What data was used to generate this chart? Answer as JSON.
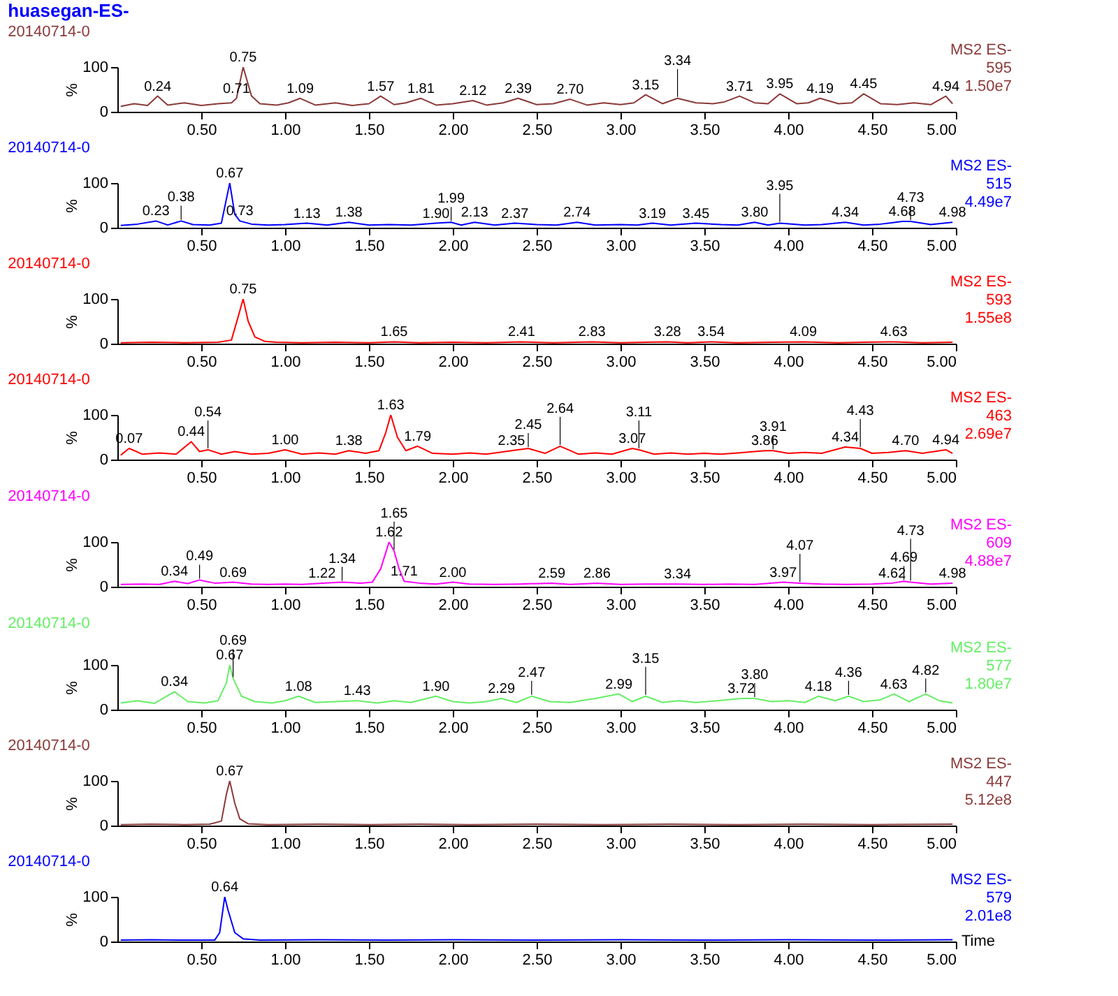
{
  "chart_data": [
    {
      "type": "line",
      "title": "huasegan-ES-",
      "subtitle": "20140714-0",
      "ylabel": "%",
      "xlim": [
        0,
        5
      ],
      "ylim": [
        0,
        100
      ],
      "yticks": [
        0,
        100
      ],
      "xticks": [
        {
          "value": 0.5,
          "label": "0.50"
        },
        {
          "value": 1,
          "label": "1.00"
        },
        {
          "value": 1.5,
          "label": "1.50"
        },
        {
          "value": 2,
          "label": "2.00"
        },
        {
          "value": 2.5,
          "label": "2.50"
        },
        {
          "value": 3,
          "label": "3.00"
        },
        {
          "value": 3.5,
          "label": "3.50"
        },
        {
          "value": 4,
          "label": "4.00"
        },
        {
          "value": 4.5,
          "label": "4.50"
        },
        {
          "value": 5,
          "label": "5.00"
        }
      ],
      "x": [
        0.02,
        0.1,
        0.18,
        0.24,
        0.3,
        0.4,
        0.5,
        0.6,
        0.68,
        0.71,
        0.75,
        0.8,
        0.85,
        0.95,
        1.02,
        1.09,
        1.18,
        1.3,
        1.4,
        1.5,
        1.57,
        1.65,
        1.72,
        1.81,
        1.9,
        2.0,
        2.12,
        2.2,
        2.3,
        2.39,
        2.5,
        2.6,
        2.7,
        2.8,
        2.9,
        3.0,
        3.08,
        3.15,
        3.25,
        3.34,
        3.45,
        3.55,
        3.62,
        3.71,
        3.8,
        3.88,
        3.95,
        4.05,
        4.12,
        4.19,
        4.3,
        4.38,
        4.45,
        4.55,
        4.65,
        4.75,
        4.85,
        4.94,
        4.98
      ],
      "series": [
        {
          "color": "#8b3a3a",
          "values": [
            12,
            18,
            14,
            35,
            15,
            20,
            14,
            18,
            20,
            30,
            100,
            35,
            18,
            15,
            20,
            30,
            15,
            20,
            14,
            18,
            35,
            16,
            20,
            30,
            15,
            18,
            25,
            15,
            20,
            30,
            16,
            18,
            28,
            15,
            20,
            16,
            20,
            38,
            18,
            30,
            20,
            18,
            22,
            35,
            20,
            18,
            40,
            18,
            20,
            30,
            18,
            20,
            40,
            18,
            16,
            20,
            16,
            35,
            18
          ]
        }
      ],
      "annotations": [
        "MS2 ES-",
        "595",
        "1.50e7",
        {
          "text": "0.24",
          "x": 0.24,
          "y": 35
        },
        {
          "text": "0.71",
          "x": 0.71,
          "y": 30
        },
        {
          "text": "0.75",
          "x": 0.75,
          "y": 100
        },
        {
          "text": "1.09",
          "x": 1.09,
          "y": 30
        },
        {
          "text": "1.57",
          "x": 1.57,
          "y": 35
        },
        {
          "text": "1.81",
          "x": 1.81,
          "y": 30
        },
        {
          "text": "2.12",
          "x": 2.12,
          "y": 25
        },
        {
          "text": "2.39",
          "x": 2.39,
          "y": 30
        },
        {
          "text": "2.70",
          "x": 2.7,
          "y": 28
        },
        {
          "text": "3.15",
          "x": 3.15,
          "y": 38
        },
        {
          "text": "3.34",
          "x": 3.34,
          "y": 30
        },
        {
          "text": "3.71",
          "x": 3.71,
          "y": 35
        },
        {
          "text": "3.95",
          "x": 3.95,
          "y": 40
        },
        {
          "text": "4.19",
          "x": 4.19,
          "y": 30
        },
        {
          "text": "4.45",
          "x": 4.45,
          "y": 40
        },
        {
          "text": "4.94",
          "x": 4.94,
          "y": 35
        }
      ]
    },
    {
      "type": "line",
      "title": "20140714-0",
      "ylabel": "%",
      "xlim": [
        0,
        5
      ],
      "ylim": [
        0,
        100
      ],
      "yticks": [
        0,
        100
      ],
      "xticks": [
        {
          "value": 0.5,
          "label": "0.50"
        },
        {
          "value": 1,
          "label": "1.00"
        },
        {
          "value": 1.5,
          "label": "1.50"
        },
        {
          "value": 2,
          "label": "2.00"
        },
        {
          "value": 2.5,
          "label": "2.50"
        },
        {
          "value": 3,
          "label": "3.00"
        },
        {
          "value": 3.5,
          "label": "3.50"
        },
        {
          "value": 4,
          "label": "4.00"
        },
        {
          "value": 4.5,
          "label": "4.50"
        },
        {
          "value": 5,
          "label": "5.00"
        }
      ],
      "x": [
        0.02,
        0.12,
        0.23,
        0.3,
        0.38,
        0.45,
        0.55,
        0.62,
        0.67,
        0.7,
        0.73,
        0.8,
        0.9,
        1.0,
        1.13,
        1.25,
        1.38,
        1.5,
        1.62,
        1.75,
        1.9,
        1.99,
        2.05,
        2.13,
        2.25,
        2.37,
        2.5,
        2.62,
        2.74,
        2.85,
        3.0,
        3.1,
        3.19,
        3.3,
        3.45,
        3.6,
        3.7,
        3.8,
        3.88,
        3.95,
        4.1,
        4.2,
        4.34,
        4.45,
        4.55,
        4.68,
        4.73,
        4.85,
        4.98
      ],
      "series": [
        {
          "color": "#0000ff",
          "values": [
            5,
            8,
            15,
            6,
            15,
            7,
            6,
            10,
            100,
            30,
            15,
            8,
            6,
            7,
            10,
            6,
            12,
            6,
            7,
            6,
            10,
            12,
            6,
            12,
            6,
            10,
            7,
            6,
            12,
            6,
            7,
            6,
            10,
            6,
            10,
            7,
            6,
            12,
            6,
            10,
            6,
            7,
            12,
            6,
            8,
            14,
            14,
            7,
            12
          ]
        }
      ],
      "annotations": [
        "MS2 ES-",
        "515",
        "4.49e7",
        {
          "text": "0.23",
          "x": 0.23,
          "y": 15
        },
        {
          "text": "0.38",
          "x": 0.38,
          "y": 15
        },
        {
          "text": "0.67",
          "x": 0.67,
          "y": 100
        },
        {
          "text": "0.73",
          "x": 0.73,
          "y": 15
        },
        {
          "text": "1.13",
          "x": 1.13,
          "y": 10
        },
        {
          "text": "1.38",
          "x": 1.38,
          "y": 12
        },
        {
          "text": "1.90",
          "x": 1.9,
          "y": 10
        },
        {
          "text": "1.99",
          "x": 1.99,
          "y": 12
        },
        {
          "text": "2.13",
          "x": 2.13,
          "y": 12
        },
        {
          "text": "2.37",
          "x": 2.37,
          "y": 10
        },
        {
          "text": "2.74",
          "x": 2.74,
          "y": 12
        },
        {
          "text": "3.19",
          "x": 3.19,
          "y": 10
        },
        {
          "text": "3.45",
          "x": 3.45,
          "y": 10
        },
        {
          "text": "3.80",
          "x": 3.8,
          "y": 12
        },
        {
          "text": "3.95",
          "x": 3.95,
          "y": 10
        },
        {
          "text": "4.34",
          "x": 4.34,
          "y": 12
        },
        {
          "text": "4.68",
          "x": 4.68,
          "y": 14
        },
        {
          "text": "4.73",
          "x": 4.73,
          "y": 14
        },
        {
          "text": "4.98",
          "x": 4.98,
          "y": 12
        }
      ]
    },
    {
      "type": "line",
      "title": "20140714-0",
      "ylabel": "%",
      "xlim": [
        0,
        5
      ],
      "ylim": [
        0,
        100
      ],
      "yticks": [
        0,
        100
      ],
      "xticks": [
        {
          "value": 0.5,
          "label": "0.50"
        },
        {
          "value": 1,
          "label": "1.00"
        },
        {
          "value": 1.5,
          "label": "1.50"
        },
        {
          "value": 2,
          "label": "2.00"
        },
        {
          "value": 2.5,
          "label": "2.50"
        },
        {
          "value": 3,
          "label": "3.00"
        },
        {
          "value": 3.5,
          "label": "3.50"
        },
        {
          "value": 4,
          "label": "4.00"
        },
        {
          "value": 4.5,
          "label": "4.50"
        },
        {
          "value": 5,
          "label": "5.00"
        }
      ],
      "x": [
        0.02,
        0.2,
        0.4,
        0.6,
        0.68,
        0.72,
        0.75,
        0.78,
        0.82,
        0.88,
        0.95,
        1.1,
        1.3,
        1.5,
        1.65,
        1.8,
        2.0,
        2.2,
        2.41,
        2.6,
        2.83,
        3.0,
        3.15,
        3.28,
        3.4,
        3.54,
        3.7,
        3.9,
        4.09,
        4.3,
        4.45,
        4.63,
        4.8,
        4.98
      ],
      "series": [
        {
          "color": "#ff0000",
          "values": [
            2,
            3,
            2,
            3,
            8,
            60,
            100,
            50,
            15,
            5,
            3,
            2,
            3,
            2,
            4,
            2,
            3,
            2,
            4,
            2,
            4,
            2,
            3,
            4,
            2,
            4,
            2,
            3,
            4,
            2,
            3,
            4,
            2,
            3
          ]
        }
      ],
      "annotations": [
        "MS2 ES-",
        "593",
        "1.55e8",
        {
          "text": "0.75",
          "x": 0.75,
          "y": 100
        },
        {
          "text": "1.65",
          "x": 1.65,
          "y": 4
        },
        {
          "text": "2.41",
          "x": 2.41,
          "y": 4
        },
        {
          "text": "2.83",
          "x": 2.83,
          "y": 4
        },
        {
          "text": "3.28",
          "x": 3.28,
          "y": 4
        },
        {
          "text": "3.54",
          "x": 3.54,
          "y": 4
        },
        {
          "text": "4.09",
          "x": 4.09,
          "y": 4
        },
        {
          "text": "4.63",
          "x": 4.63,
          "y": 4
        }
      ]
    },
    {
      "type": "line",
      "title": "20140714-0",
      "ylabel": "%",
      "xlim": [
        0,
        5
      ],
      "ylim": [
        0,
        100
      ],
      "yticks": [
        0,
        100
      ],
      "xticks": [
        {
          "value": 0.5,
          "label": "0.50"
        },
        {
          "value": 1,
          "label": "1.00"
        },
        {
          "value": 1.5,
          "label": "1.50"
        },
        {
          "value": 2,
          "label": "2.00"
        },
        {
          "value": 2.5,
          "label": "2.50"
        },
        {
          "value": 3,
          "label": "3.00"
        },
        {
          "value": 3.5,
          "label": "3.50"
        },
        {
          "value": 4,
          "label": "4.00"
        },
        {
          "value": 4.5,
          "label": "4.50"
        },
        {
          "value": 5,
          "label": "5.00"
        }
      ],
      "x": [
        0.02,
        0.07,
        0.15,
        0.25,
        0.35,
        0.44,
        0.49,
        0.54,
        0.62,
        0.7,
        0.8,
        0.9,
        1.0,
        1.1,
        1.2,
        1.3,
        1.38,
        1.48,
        1.56,
        1.6,
        1.63,
        1.67,
        1.72,
        1.79,
        1.88,
        2.0,
        2.1,
        2.2,
        2.35,
        2.45,
        2.55,
        2.64,
        2.75,
        2.85,
        2.95,
        3.07,
        3.11,
        3.2,
        3.3,
        3.4,
        3.5,
        3.6,
        3.7,
        3.86,
        3.91,
        4.0,
        4.1,
        4.2,
        4.34,
        4.43,
        4.5,
        4.6,
        4.7,
        4.8,
        4.94,
        4.98
      ],
      "series": [
        {
          "color": "#ff0000",
          "values": [
            10,
            25,
            12,
            15,
            12,
            40,
            18,
            22,
            12,
            18,
            12,
            14,
            22,
            12,
            15,
            12,
            20,
            14,
            20,
            60,
            100,
            50,
            20,
            30,
            14,
            12,
            15,
            12,
            20,
            25,
            14,
            30,
            12,
            15,
            12,
            25,
            22,
            12,
            15,
            12,
            14,
            12,
            15,
            20,
            20,
            14,
            16,
            14,
            28,
            25,
            14,
            16,
            20,
            14,
            22,
            14
          ]
        }
      ],
      "annotations": [
        "MS2 ES-",
        "463",
        "2.69e7",
        {
          "text": "0.07",
          "x": 0.07,
          "y": 25
        },
        {
          "text": "0.44",
          "x": 0.44,
          "y": 40
        },
        {
          "text": "0.54",
          "x": 0.54,
          "y": 22
        },
        {
          "text": "1.00",
          "x": 1.0,
          "y": 22
        },
        {
          "text": "1.38",
          "x": 1.38,
          "y": 20
        },
        {
          "text": "1.63",
          "x": 1.63,
          "y": 100
        },
        {
          "text": "1.79",
          "x": 1.79,
          "y": 30
        },
        {
          "text": "2.35",
          "x": 2.35,
          "y": 20
        },
        {
          "text": "2.45",
          "x": 2.45,
          "y": 25
        },
        {
          "text": "2.64",
          "x": 2.64,
          "y": 30
        },
        {
          "text": "3.07",
          "x": 3.07,
          "y": 25
        },
        {
          "text": "3.11",
          "x": 3.11,
          "y": 22
        },
        {
          "text": "3.86",
          "x": 3.86,
          "y": 20
        },
        {
          "text": "3.91",
          "x": 3.91,
          "y": 20
        },
        {
          "text": "4.34",
          "x": 4.34,
          "y": 28
        },
        {
          "text": "4.43",
          "x": 4.43,
          "y": 25
        },
        {
          "text": "4.70",
          "x": 4.7,
          "y": 20
        },
        {
          "text": "4.94",
          "x": 4.94,
          "y": 22
        }
      ]
    },
    {
      "type": "line",
      "title": "20140714-0",
      "ylabel": "%",
      "xlim": [
        0,
        5
      ],
      "ylim": [
        0,
        100
      ],
      "yticks": [
        0,
        100
      ],
      "xticks": [
        {
          "value": 0.5,
          "label": "0.50"
        },
        {
          "value": 1,
          "label": "1.00"
        },
        {
          "value": 1.5,
          "label": "1.50"
        },
        {
          "value": 2,
          "label": "2.00"
        },
        {
          "value": 2.5,
          "label": "2.50"
        },
        {
          "value": 3,
          "label": "3.00"
        },
        {
          "value": 3.5,
          "label": "3.50"
        },
        {
          "value": 4,
          "label": "4.00"
        },
        {
          "value": 4.5,
          "label": "4.50"
        },
        {
          "value": 5,
          "label": "5.00"
        }
      ],
      "x": [
        0.02,
        0.15,
        0.25,
        0.34,
        0.42,
        0.49,
        0.58,
        0.69,
        0.8,
        0.9,
        1.0,
        1.1,
        1.22,
        1.34,
        1.45,
        1.52,
        1.57,
        1.62,
        1.65,
        1.68,
        1.71,
        1.8,
        1.9,
        2.0,
        2.1,
        2.25,
        2.4,
        2.59,
        2.7,
        2.86,
        3.0,
        3.15,
        3.34,
        3.5,
        3.65,
        3.8,
        3.97,
        4.07,
        4.2,
        4.35,
        4.5,
        4.62,
        4.69,
        4.73,
        4.85,
        4.98
      ],
      "series": [
        {
          "color": "#ff00ff",
          "values": [
            5,
            6,
            5,
            12,
            7,
            15,
            8,
            10,
            6,
            5,
            6,
            5,
            8,
            10,
            8,
            10,
            40,
            100,
            80,
            40,
            12,
            8,
            6,
            10,
            6,
            5,
            6,
            8,
            5,
            8,
            5,
            6,
            6,
            5,
            6,
            5,
            10,
            8,
            6,
            5,
            6,
            8,
            12,
            10,
            6,
            8
          ]
        }
      ],
      "annotations": [
        "MS2 ES-",
        "609",
        "4.88e7",
        {
          "text": "0.34",
          "x": 0.34,
          "y": 12
        },
        {
          "text": "0.49",
          "x": 0.49,
          "y": 15
        },
        {
          "text": "0.69",
          "x": 0.69,
          "y": 10
        },
        {
          "text": "1.22",
          "x": 1.22,
          "y": 8
        },
        {
          "text": "1.34",
          "x": 1.34,
          "y": 10
        },
        {
          "text": "1.62",
          "x": 1.62,
          "y": 100
        },
        {
          "text": "1.65",
          "x": 1.65,
          "y": 80
        },
        {
          "text": "1.71",
          "x": 1.71,
          "y": 12
        },
        {
          "text": "2.00",
          "x": 2.0,
          "y": 10
        },
        {
          "text": "2.59",
          "x": 2.59,
          "y": 8
        },
        {
          "text": "2.86",
          "x": 2.86,
          "y": 8
        },
        {
          "text": "3.34",
          "x": 3.34,
          "y": 6
        },
        {
          "text": "3.97",
          "x": 3.97,
          "y": 10
        },
        {
          "text": "4.07",
          "x": 4.07,
          "y": 8
        },
        {
          "text": "4.62",
          "x": 4.62,
          "y": 8
        },
        {
          "text": "4.69",
          "x": 4.69,
          "y": 12
        },
        {
          "text": "4.73",
          "x": 4.73,
          "y": 10
        },
        {
          "text": "4.98",
          "x": 4.98,
          "y": 8
        }
      ]
    },
    {
      "type": "line",
      "title": "20140714-0",
      "ylabel": "%",
      "xlim": [
        0,
        5
      ],
      "ylim": [
        0,
        100
      ],
      "yticks": [
        0,
        100
      ],
      "xticks": [
        {
          "value": 0.5,
          "label": "0.50"
        },
        {
          "value": 1,
          "label": "1.00"
        },
        {
          "value": 1.5,
          "label": "1.50"
        },
        {
          "value": 2,
          "label": "2.00"
        },
        {
          "value": 2.5,
          "label": "2.50"
        },
        {
          "value": 3,
          "label": "3.00"
        },
        {
          "value": 3.5,
          "label": "3.50"
        },
        {
          "value": 4,
          "label": "4.00"
        },
        {
          "value": 4.5,
          "label": "4.50"
        },
        {
          "value": 5,
          "label": "5.00"
        }
      ],
      "x": [
        0.02,
        0.12,
        0.22,
        0.34,
        0.42,
        0.52,
        0.6,
        0.65,
        0.67,
        0.69,
        0.74,
        0.82,
        0.92,
        1.0,
        1.08,
        1.18,
        1.3,
        1.43,
        1.55,
        1.65,
        1.75,
        1.9,
        2.0,
        2.1,
        2.2,
        2.29,
        2.38,
        2.47,
        2.58,
        2.7,
        2.85,
        2.99,
        3.07,
        3.15,
        3.25,
        3.35,
        3.45,
        3.58,
        3.72,
        3.8,
        3.9,
        4.0,
        4.1,
        4.18,
        4.28,
        4.36,
        4.45,
        4.55,
        4.63,
        4.72,
        4.82,
        4.9,
        4.98
      ],
      "series": [
        {
          "color": "#66ee66",
          "values": [
            15,
            20,
            14,
            40,
            18,
            15,
            20,
            60,
            100,
            70,
            30,
            18,
            15,
            20,
            30,
            16,
            18,
            20,
            15,
            20,
            16,
            30,
            18,
            15,
            18,
            25,
            16,
            30,
            18,
            16,
            25,
            35,
            18,
            30,
            16,
            20,
            16,
            20,
            25,
            25,
            18,
            20,
            16,
            30,
            20,
            30,
            18,
            22,
            35,
            18,
            35,
            20,
            15
          ]
        }
      ],
      "annotations": [
        "MS2 ES-",
        "577",
        "1.80e7",
        {
          "text": "0.34",
          "x": 0.34,
          "y": 40
        },
        {
          "text": "0.67",
          "x": 0.67,
          "y": 100
        },
        {
          "text": "0.69",
          "x": 0.69,
          "y": 70
        },
        {
          "text": "1.08",
          "x": 1.08,
          "y": 30
        },
        {
          "text": "1.43",
          "x": 1.43,
          "y": 20
        },
        {
          "text": "1.90",
          "x": 1.9,
          "y": 30
        },
        {
          "text": "2.29",
          "x": 2.29,
          "y": 25
        },
        {
          "text": "2.47",
          "x": 2.47,
          "y": 30
        },
        {
          "text": "2.99",
          "x": 2.99,
          "y": 35
        },
        {
          "text": "3.15",
          "x": 3.15,
          "y": 30
        },
        {
          "text": "3.72",
          "x": 3.72,
          "y": 25
        },
        {
          "text": "3.80",
          "x": 3.8,
          "y": 25
        },
        {
          "text": "4.18",
          "x": 4.18,
          "y": 30
        },
        {
          "text": "4.36",
          "x": 4.36,
          "y": 30
        },
        {
          "text": "4.63",
          "x": 4.63,
          "y": 35
        },
        {
          "text": "4.82",
          "x": 4.82,
          "y": 35
        }
      ]
    },
    {
      "type": "line",
      "title": "20140714-0",
      "ylabel": "%",
      "xlim": [
        0,
        5
      ],
      "ylim": [
        0,
        100
      ],
      "yticks": [
        0,
        100
      ],
      "xticks": [
        {
          "value": 0.5,
          "label": "0.50"
        },
        {
          "value": 1,
          "label": "1.00"
        },
        {
          "value": 1.5,
          "label": "1.50"
        },
        {
          "value": 2,
          "label": "2.00"
        },
        {
          "value": 2.5,
          "label": "2.50"
        },
        {
          "value": 3,
          "label": "3.00"
        },
        {
          "value": 3.5,
          "label": "3.50"
        },
        {
          "value": 4,
          "label": "4.00"
        },
        {
          "value": 4.5,
          "label": "4.50"
        },
        {
          "value": 5,
          "label": "5.00"
        }
      ],
      "x": [
        0.02,
        0.2,
        0.4,
        0.55,
        0.62,
        0.65,
        0.67,
        0.7,
        0.73,
        0.78,
        0.9,
        1.2,
        1.5,
        1.8,
        2.1,
        2.5,
        2.9,
        3.3,
        3.7,
        4.1,
        4.5,
        4.98
      ],
      "series": [
        {
          "color": "#8b3a3a",
          "values": [
            2,
            3,
            2,
            3,
            10,
            70,
            100,
            50,
            15,
            4,
            2,
            3,
            2,
            3,
            2,
            3,
            2,
            3,
            2,
            3,
            2,
            3
          ]
        }
      ],
      "annotations": [
        "MS2 ES-",
        "447",
        "5.12e8",
        {
          "text": "0.67",
          "x": 0.67,
          "y": 100
        }
      ]
    },
    {
      "type": "line",
      "title": "20140714-0",
      "ylabel": "%",
      "xlabel": "Time",
      "xlim": [
        0,
        5
      ],
      "ylim": [
        0,
        100
      ],
      "yticks": [
        0,
        100
      ],
      "xticks": [
        {
          "value": 0.5,
          "label": "0.50"
        },
        {
          "value": 1,
          "label": "1.00"
        },
        {
          "value": 1.5,
          "label": "1.50"
        },
        {
          "value": 2,
          "label": "2.00"
        },
        {
          "value": 2.5,
          "label": "2.50"
        },
        {
          "value": 3,
          "label": "3.00"
        },
        {
          "value": 3.5,
          "label": "3.50"
        },
        {
          "value": 4,
          "label": "4.00"
        },
        {
          "value": 4.5,
          "label": "4.50"
        },
        {
          "value": 5,
          "label": "5.00"
        }
      ],
      "x": [
        0.02,
        0.2,
        0.4,
        0.58,
        0.61,
        0.64,
        0.66,
        0.7,
        0.75,
        0.85,
        1.2,
        1.6,
        2.0,
        2.5,
        3.0,
        3.5,
        4.0,
        4.5,
        4.98
      ],
      "series": [
        {
          "color": "#0000ff",
          "values": [
            3,
            4,
            3,
            3,
            20,
            100,
            70,
            20,
            6,
            3,
            4,
            3,
            4,
            3,
            4,
            3,
            4,
            3,
            4
          ]
        }
      ],
      "annotations": [
        "MS2 ES-",
        "579",
        "2.01e8",
        {
          "text": "0.64",
          "x": 0.64,
          "y": 100
        }
      ]
    }
  ]
}
